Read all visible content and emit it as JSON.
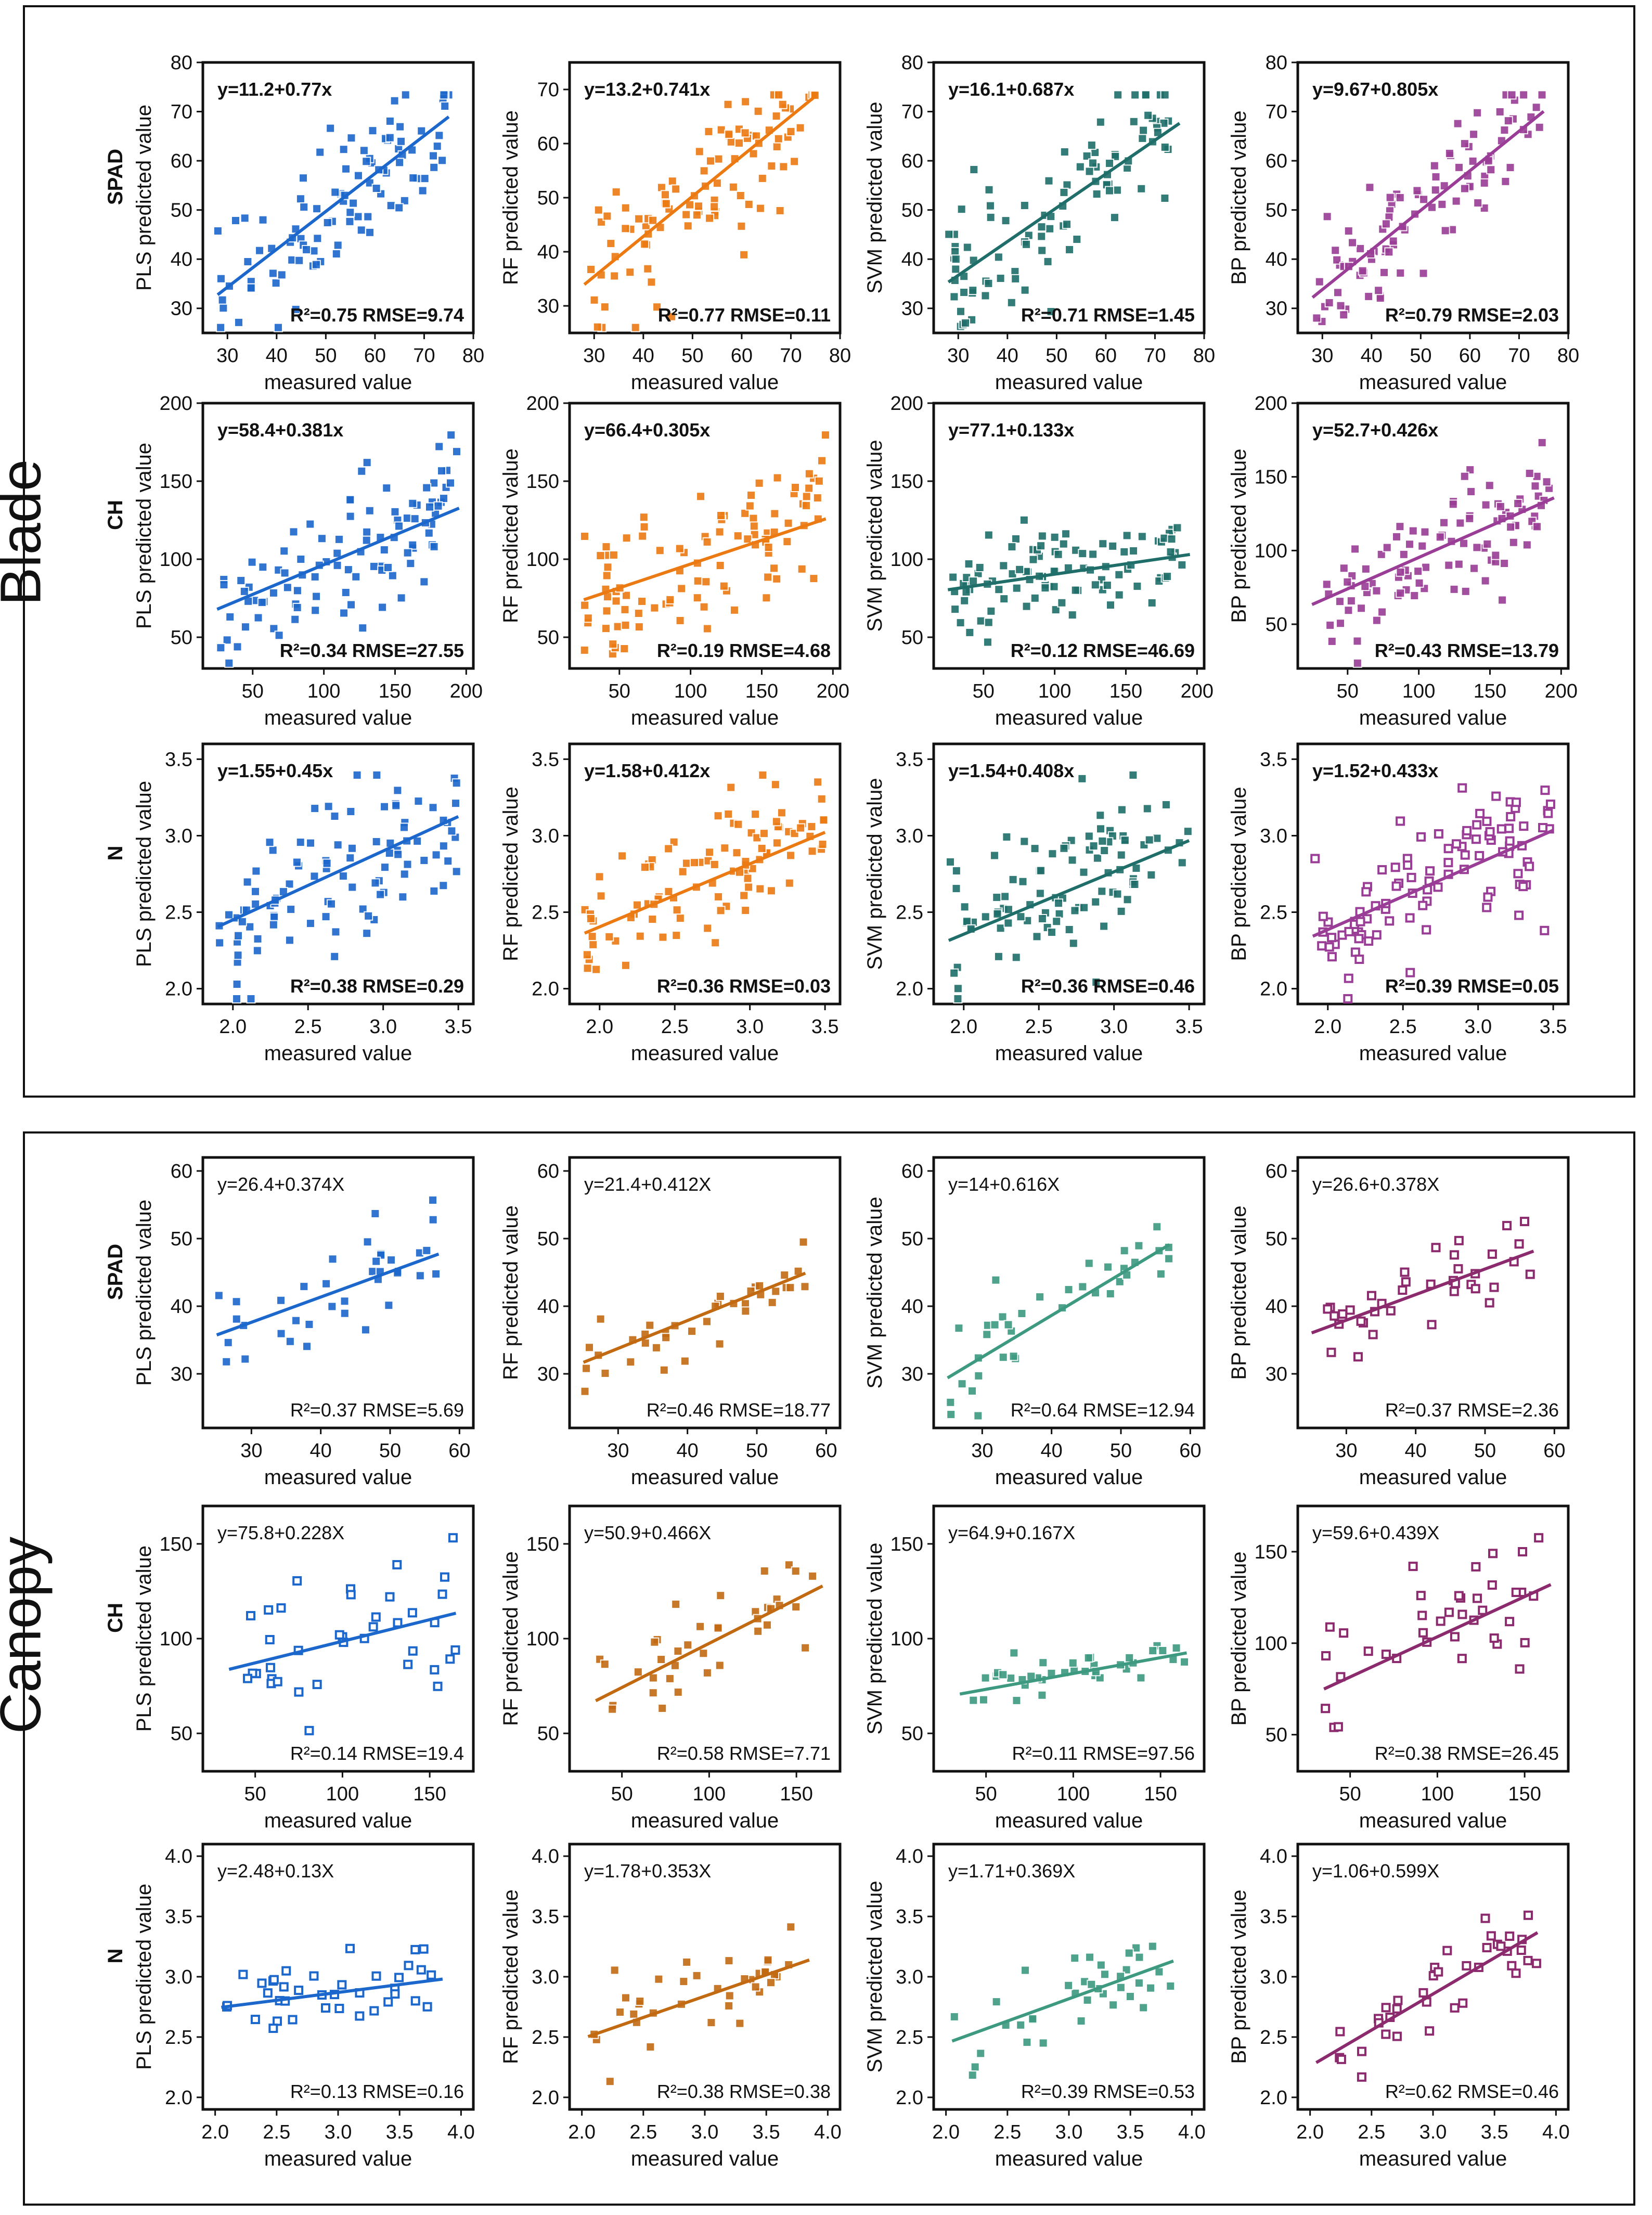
{
  "figure": {
    "sections": [
      {
        "name": "blade",
        "label": "Blade"
      },
      {
        "name": "canopy",
        "label": "Canopy"
      }
    ],
    "colors": {
      "PLS": "#1c67cc",
      "RF": "#ec7a12",
      "SVM": "#1f6e6a",
      "BP": "#9a3d96"
    },
    "canopy_colors": {
      "PLS": "#1c67cc",
      "RF": "#c26a12",
      "SVM": "#3d9a80",
      "BP": "#8c2a6e"
    }
  },
  "chart_data": [
    {
      "type": "scatter",
      "section": "Blade",
      "row": "SPAD",
      "model": "PLS",
      "xlabel": "measured value",
      "ylabel": "PLS predicted value",
      "row_label": "SPAD",
      "equation": "y=11.2+0.77x",
      "stats": "R²=0.75 RMSE=9.74",
      "xlim": [
        25,
        80
      ],
      "ylim": [
        25,
        80
      ],
      "xticks": [
        "30",
        "40",
        "50",
        "60",
        "70",
        "80"
      ],
      "yticks": [
        "30",
        "40",
        "50",
        "60",
        "70",
        "80"
      ],
      "fit": {
        "intercept": 11.2,
        "slope": 0.77,
        "x_range": [
          28,
          75
        ]
      },
      "gen": {
        "seed": 1,
        "n": 100,
        "noise": 7
      },
      "point_style": "filled"
    },
    {
      "type": "scatter",
      "section": "Blade",
      "row": "SPAD",
      "model": "RF",
      "xlabel": "measured value",
      "ylabel": "RF predicted value",
      "row_label": "",
      "equation": "y=13.2+0.741x",
      "stats": "R²=0.77 RMSE=0.11",
      "xlim": [
        25,
        80
      ],
      "ylim": [
        25,
        75
      ],
      "xticks": [
        "30",
        "40",
        "50",
        "60",
        "70",
        "80"
      ],
      "yticks": [
        "30",
        "40",
        "50",
        "60",
        "70"
      ],
      "fit": {
        "intercept": 13.2,
        "slope": 0.741,
        "x_range": [
          28,
          75
        ]
      },
      "gen": {
        "seed": 2,
        "n": 100,
        "noise": 6
      },
      "point_style": "filled"
    },
    {
      "type": "scatter",
      "section": "Blade",
      "row": "SPAD",
      "model": "SVM",
      "xlabel": "measured value",
      "ylabel": "SVM predicted value",
      "row_label": "",
      "equation": "y=16.1+0.687x",
      "stats": "R²=0.71 RMSE=1.45",
      "xlim": [
        25,
        80
      ],
      "ylim": [
        25,
        80
      ],
      "xticks": [
        "30",
        "40",
        "50",
        "60",
        "70",
        "80"
      ],
      "yticks": [
        "30",
        "40",
        "50",
        "60",
        "70",
        "80"
      ],
      "fit": {
        "intercept": 16.1,
        "slope": 0.687,
        "x_range": [
          28,
          75
        ]
      },
      "gen": {
        "seed": 3,
        "n": 100,
        "noise": 7
      },
      "point_style": "filled"
    },
    {
      "type": "scatter",
      "section": "Blade",
      "row": "SPAD",
      "model": "BP",
      "xlabel": "measured value",
      "ylabel": "BP predicted value",
      "row_label": "",
      "equation": "y=9.67+0.805x",
      "stats": "R²=0.79 RMSE=2.03",
      "xlim": [
        25,
        80
      ],
      "ylim": [
        25,
        80
      ],
      "xticks": [
        "30",
        "40",
        "50",
        "60",
        "70",
        "80"
      ],
      "yticks": [
        "30",
        "40",
        "50",
        "60",
        "70",
        "80"
      ],
      "fit": {
        "intercept": 9.67,
        "slope": 0.805,
        "x_range": [
          28,
          75
        ]
      },
      "gen": {
        "seed": 4,
        "n": 100,
        "noise": 6
      },
      "point_style": "filled"
    },
    {
      "type": "scatter",
      "section": "Blade",
      "row": "CH",
      "model": "PLS",
      "xlabel": "measured value",
      "ylabel": "PLS predicted value",
      "row_label": "CH",
      "equation": "y=58.4+0.381x",
      "stats": "R²=0.34 RMSE=27.55",
      "xlim": [
        15,
        205
      ],
      "ylim": [
        30,
        200
      ],
      "xticks": [
        "50",
        "100",
        "150",
        "200"
      ],
      "yticks": [
        "50",
        "100",
        "150",
        "200"
      ],
      "fit": {
        "intercept": 58.4,
        "slope": 0.381,
        "x_range": [
          25,
          195
        ]
      },
      "gen": {
        "seed": 5,
        "n": 100,
        "noise": 25
      },
      "point_style": "filled"
    },
    {
      "type": "scatter",
      "section": "Blade",
      "row": "CH",
      "model": "RF",
      "xlabel": "measured value",
      "ylabel": "RF predicted value",
      "row_label": "",
      "equation": "y=66.4+0.305x",
      "stats": "R²=0.19 RMSE=4.68",
      "xlim": [
        15,
        205
      ],
      "ylim": [
        30,
        200
      ],
      "xticks": [
        "50",
        "100",
        "150",
        "200"
      ],
      "yticks": [
        "50",
        "100",
        "150",
        "200"
      ],
      "fit": {
        "intercept": 66.4,
        "slope": 0.305,
        "x_range": [
          25,
          195
        ]
      },
      "gen": {
        "seed": 6,
        "n": 100,
        "noise": 25
      },
      "point_style": "filled"
    },
    {
      "type": "scatter",
      "section": "Blade",
      "row": "CH",
      "model": "SVM",
      "xlabel": "measured value",
      "ylabel": "SVM predicted value",
      "row_label": "",
      "equation": "y=77.1+0.133x",
      "stats": "R²=0.12 RMSE=46.69",
      "xlim": [
        15,
        205
      ],
      "ylim": [
        30,
        200
      ],
      "xticks": [
        "50",
        "100",
        "150",
        "200"
      ],
      "yticks": [
        "50",
        "100",
        "150",
        "200"
      ],
      "fit": {
        "intercept": 77.1,
        "slope": 0.133,
        "x_range": [
          25,
          195
        ]
      },
      "gen": {
        "seed": 7,
        "n": 100,
        "noise": 14
      },
      "point_style": "filled"
    },
    {
      "type": "scatter",
      "section": "Blade",
      "row": "CH",
      "model": "BP",
      "xlabel": "measured value",
      "ylabel": "BP predicted value",
      "row_label": "",
      "equation": "y=52.7+0.426x",
      "stats": "R²=0.43 RMSE=13.79",
      "xlim": [
        15,
        205
      ],
      "ylim": [
        20,
        200
      ],
      "xticks": [
        "50",
        "100",
        "150",
        "200"
      ],
      "yticks": [
        "50",
        "100",
        "150",
        "200"
      ],
      "fit": {
        "intercept": 52.7,
        "slope": 0.426,
        "x_range": [
          25,
          195
        ]
      },
      "gen": {
        "seed": 8,
        "n": 100,
        "noise": 22
      },
      "point_style": "filled"
    },
    {
      "type": "scatter",
      "section": "Blade",
      "row": "N",
      "model": "PLS",
      "xlabel": "measured value",
      "ylabel": "PLS predicted value",
      "row_label": "N",
      "equation": "y=1.55+0.45x",
      "stats": "R²=0.38 RMSE=0.29",
      "xlim": [
        1.8,
        3.6
      ],
      "ylim": [
        1.9,
        3.6
      ],
      "xticks": [
        "2.0",
        "2.5",
        "3.0",
        "3.5"
      ],
      "yticks": [
        "2.0",
        "2.5",
        "3.0",
        "3.5"
      ],
      "fit": {
        "intercept": 1.55,
        "slope": 0.45,
        "x_range": [
          1.9,
          3.5
        ]
      },
      "gen": {
        "seed": 9,
        "n": 100,
        "noise": 0.25
      },
      "point_style": "filled"
    },
    {
      "type": "scatter",
      "section": "Blade",
      "row": "N",
      "model": "RF",
      "xlabel": "measured value",
      "ylabel": "RF predicted value",
      "row_label": "",
      "equation": "y=1.58+0.412x",
      "stats": "R²=0.36 RMSE=0.03",
      "xlim": [
        1.8,
        3.6
      ],
      "ylim": [
        1.9,
        3.6
      ],
      "xticks": [
        "2.0",
        "2.5",
        "3.0",
        "3.5"
      ],
      "yticks": [
        "2.0",
        "2.5",
        "3.0",
        "3.5"
      ],
      "fit": {
        "intercept": 1.58,
        "slope": 0.412,
        "x_range": [
          1.9,
          3.5
        ]
      },
      "gen": {
        "seed": 10,
        "n": 100,
        "noise": 0.22
      },
      "point_style": "filled"
    },
    {
      "type": "scatter",
      "section": "Blade",
      "row": "N",
      "model": "SVM",
      "xlabel": "measured value",
      "ylabel": "SVM predicted value",
      "row_label": "",
      "equation": "y=1.54+0.408x",
      "stats": "R²=0.36 RMSE=0.46",
      "xlim": [
        1.8,
        3.6
      ],
      "ylim": [
        1.9,
        3.6
      ],
      "xticks": [
        "2.0",
        "2.5",
        "3.0",
        "3.5"
      ],
      "yticks": [
        "2.0",
        "2.5",
        "3.0",
        "3.5"
      ],
      "fit": {
        "intercept": 1.54,
        "slope": 0.408,
        "x_range": [
          1.9,
          3.5
        ]
      },
      "gen": {
        "seed": 11,
        "n": 100,
        "noise": 0.24
      },
      "point_style": "filled"
    },
    {
      "type": "scatter",
      "section": "Blade",
      "row": "N",
      "model": "BP",
      "xlabel": "measured value",
      "ylabel": "BP predicted value",
      "row_label": "",
      "equation": "y=1.52+0.433x",
      "stats": "R²=0.39 RMSE=0.05",
      "xlim": [
        1.8,
        3.6
      ],
      "ylim": [
        1.9,
        3.6
      ],
      "xticks": [
        "2.0",
        "2.5",
        "3.0",
        "3.5"
      ],
      "yticks": [
        "2.0",
        "2.5",
        "3.0",
        "3.5"
      ],
      "fit": {
        "intercept": 1.52,
        "slope": 0.433,
        "x_range": [
          1.9,
          3.5
        ]
      },
      "gen": {
        "seed": 12,
        "n": 100,
        "noise": 0.24
      },
      "point_style": "open"
    },
    {
      "type": "scatter",
      "section": "Canopy",
      "row": "SPAD",
      "model": "PLS",
      "xlabel": "measured value",
      "ylabel": "PLS predicted value",
      "row_label": "SPAD",
      "equation": "y=26.4+0.374X",
      "stats": "R²=0.37 RMSE=5.69",
      "xlim": [
        23,
        62
      ],
      "ylim": [
        22,
        62
      ],
      "xticks": [
        "30",
        "40",
        "50",
        "60"
      ],
      "yticks": [
        "30",
        "40",
        "50",
        "60"
      ],
      "fit": {
        "intercept": 26.4,
        "slope": 0.374,
        "x_range": [
          25,
          57
        ]
      },
      "gen": {
        "seed": 13,
        "n": 38,
        "noise": 4
      },
      "point_style": "filled"
    },
    {
      "type": "scatter",
      "section": "Canopy",
      "row": "SPAD",
      "model": "RF",
      "xlabel": "measured value",
      "ylabel": "RF predicted value",
      "row_label": "",
      "equation": "y=21.4+0.412X",
      "stats": "R²=0.46 RMSE=18.77",
      "xlim": [
        23,
        62
      ],
      "ylim": [
        22,
        62
      ],
      "xticks": [
        "30",
        "40",
        "50",
        "60"
      ],
      "yticks": [
        "30",
        "40",
        "50",
        "60"
      ],
      "fit": {
        "intercept": 21.4,
        "slope": 0.412,
        "x_range": [
          25,
          57
        ]
      },
      "gen": {
        "seed": 14,
        "n": 38,
        "noise": 2.6
      },
      "point_style": "filled"
    },
    {
      "type": "scatter",
      "section": "Canopy",
      "row": "SPAD",
      "model": "SVM",
      "xlabel": "measured value",
      "ylabel": "SVM predicted value",
      "row_label": "",
      "equation": "y=14+0.616X",
      "stats": "R²=0.64 RMSE=12.94",
      "xlim": [
        23,
        62
      ],
      "ylim": [
        22,
        62
      ],
      "xticks": [
        "30",
        "40",
        "50",
        "60"
      ],
      "yticks": [
        "30",
        "40",
        "50",
        "60"
      ],
      "fit": {
        "intercept": 14,
        "slope": 0.616,
        "x_range": [
          25,
          57
        ]
      },
      "gen": {
        "seed": 15,
        "n": 38,
        "noise": 3.5
      },
      "point_style": "filled"
    },
    {
      "type": "scatter",
      "section": "Canopy",
      "row": "SPAD",
      "model": "BP",
      "xlabel": "measured value",
      "ylabel": "BP predicted value",
      "row_label": "",
      "equation": "y=26.6+0.378X",
      "stats": "R²=0.37 RMSE=2.36",
      "xlim": [
        23,
        62
      ],
      "ylim": [
        22,
        62
      ],
      "xticks": [
        "30",
        "40",
        "50",
        "60"
      ],
      "yticks": [
        "30",
        "40",
        "50",
        "60"
      ],
      "fit": {
        "intercept": 26.6,
        "slope": 0.378,
        "x_range": [
          25,
          57
        ]
      },
      "gen": {
        "seed": 16,
        "n": 38,
        "noise": 4
      },
      "point_style": "open"
    },
    {
      "type": "scatter",
      "section": "Canopy",
      "row": "CH",
      "model": "PLS",
      "xlabel": "measured value",
      "ylabel": "PLS predicted value",
      "row_label": "CH",
      "equation": "y=75.8+0.228X",
      "stats": "R²=0.14 RMSE=19.4",
      "xlim": [
        20,
        175
      ],
      "ylim": [
        30,
        170
      ],
      "xticks": [
        "50",
        "100",
        "150"
      ],
      "yticks": [
        "50",
        "100",
        "150"
      ],
      "fit": {
        "intercept": 75.8,
        "slope": 0.228,
        "x_range": [
          35,
          165
        ]
      },
      "gen": {
        "seed": 17,
        "n": 38,
        "noise": 20
      },
      "point_style": "open"
    },
    {
      "type": "scatter",
      "section": "Canopy",
      "row": "CH",
      "model": "RF",
      "xlabel": "measured value",
      "ylabel": "RF predicted value",
      "row_label": "",
      "equation": "y=50.9+0.466X",
      "stats": "R²=0.58 RMSE=7.71",
      "xlim": [
        20,
        175
      ],
      "ylim": [
        30,
        170
      ],
      "xticks": [
        "50",
        "100",
        "150"
      ],
      "yticks": [
        "50",
        "100",
        "150"
      ],
      "fit": {
        "intercept": 50.9,
        "slope": 0.466,
        "x_range": [
          35,
          165
        ]
      },
      "gen": {
        "seed": 18,
        "n": 38,
        "noise": 14
      },
      "point_style": "filled"
    },
    {
      "type": "scatter",
      "section": "Canopy",
      "row": "CH",
      "model": "SVM",
      "xlabel": "measured value",
      "ylabel": "SVM predicted value",
      "row_label": "",
      "equation": "y=64.9+0.167X",
      "stats": "R²=0.11 RMSE=97.56",
      "xlim": [
        20,
        175
      ],
      "ylim": [
        30,
        170
      ],
      "xticks": [
        "50",
        "100",
        "150"
      ],
      "yticks": [
        "50",
        "100",
        "150"
      ],
      "fit": {
        "intercept": 64.9,
        "slope": 0.167,
        "x_range": [
          35,
          165
        ]
      },
      "gen": {
        "seed": 19,
        "n": 38,
        "noise": 6
      },
      "point_style": "filled"
    },
    {
      "type": "scatter",
      "section": "Canopy",
      "row": "CH",
      "model": "BP",
      "xlabel": "measured value",
      "ylabel": "BP predicted value",
      "row_label": "",
      "equation": "y=59.6+0.439X",
      "stats": "R²=0.38 RMSE=26.45",
      "xlim": [
        20,
        175
      ],
      "ylim": [
        30,
        175
      ],
      "xticks": [
        "50",
        "100",
        "150"
      ],
      "yticks": [
        "50",
        "100",
        "150"
      ],
      "fit": {
        "intercept": 59.6,
        "slope": 0.439,
        "x_range": [
          35,
          165
        ]
      },
      "gen": {
        "seed": 20,
        "n": 38,
        "noise": 22
      },
      "point_style": "open"
    },
    {
      "type": "scatter",
      "section": "Canopy",
      "row": "N",
      "model": "PLS",
      "xlabel": "measured value",
      "ylabel": "PLS predicted value",
      "row_label": "N",
      "equation": "y=2.48+0.13X",
      "stats": "R²=0.13 RMSE=0.16",
      "xlim": [
        1.9,
        4.1
      ],
      "ylim": [
        1.9,
        4.1
      ],
      "xticks": [
        "2.0",
        "2.5",
        "3.0",
        "3.5",
        "4.0"
      ],
      "yticks": [
        "2.0",
        "2.5",
        "3.0",
        "3.5",
        "4.0"
      ],
      "fit": {
        "intercept": 2.48,
        "slope": 0.13,
        "x_range": [
          2.05,
          3.85
        ]
      },
      "gen": {
        "seed": 21,
        "n": 38,
        "noise": 0.14
      },
      "point_style": "open"
    },
    {
      "type": "scatter",
      "section": "Canopy",
      "row": "N",
      "model": "RF",
      "xlabel": "measured value",
      "ylabel": "RF predicted value",
      "row_label": "",
      "equation": "y=1.78+0.353X",
      "stats": "R²=0.38 RMSE=0.38",
      "xlim": [
        1.9,
        4.1
      ],
      "ylim": [
        1.9,
        4.1
      ],
      "xticks": [
        "2.0",
        "2.5",
        "3.0",
        "3.5",
        "4.0"
      ],
      "yticks": [
        "2.0",
        "2.5",
        "3.0",
        "3.5",
        "4.0"
      ],
      "fit": {
        "intercept": 1.78,
        "slope": 0.353,
        "x_range": [
          2.05,
          3.85
        ]
      },
      "gen": {
        "seed": 22,
        "n": 38,
        "noise": 0.18
      },
      "point_style": "filled"
    },
    {
      "type": "scatter",
      "section": "Canopy",
      "row": "N",
      "model": "SVM",
      "xlabel": "measured value",
      "ylabel": "SVM predicted value",
      "row_label": "",
      "equation": "y=1.71+0.369X",
      "stats": "R²=0.39 RMSE=0.53",
      "xlim": [
        1.9,
        4.1
      ],
      "ylim": [
        1.9,
        4.1
      ],
      "xticks": [
        "2.0",
        "2.5",
        "3.0",
        "3.5",
        "4.0"
      ],
      "yticks": [
        "2.0",
        "2.5",
        "3.0",
        "3.5",
        "4.0"
      ],
      "fit": {
        "intercept": 1.71,
        "slope": 0.369,
        "x_range": [
          2.05,
          3.85
        ]
      },
      "gen": {
        "seed": 23,
        "n": 38,
        "noise": 0.2
      },
      "point_style": "filled"
    },
    {
      "type": "scatter",
      "section": "Canopy",
      "row": "N",
      "model": "BP",
      "xlabel": "measured value",
      "ylabel": "BP predicted value",
      "row_label": "",
      "equation": "y=1.06+0.599X",
      "stats": "R²=0.62 RMSE=0.46",
      "xlim": [
        1.9,
        4.1
      ],
      "ylim": [
        1.9,
        4.1
      ],
      "xticks": [
        "2.0",
        "2.5",
        "3.0",
        "3.5",
        "4.0"
      ],
      "yticks": [
        "2.0",
        "2.5",
        "3.0",
        "3.5",
        "4.0"
      ],
      "fit": {
        "intercept": 1.06,
        "slope": 0.599,
        "x_range": [
          2.05,
          3.85
        ]
      },
      "gen": {
        "seed": 24,
        "n": 38,
        "noise": 0.16
      },
      "point_style": "open"
    }
  ]
}
